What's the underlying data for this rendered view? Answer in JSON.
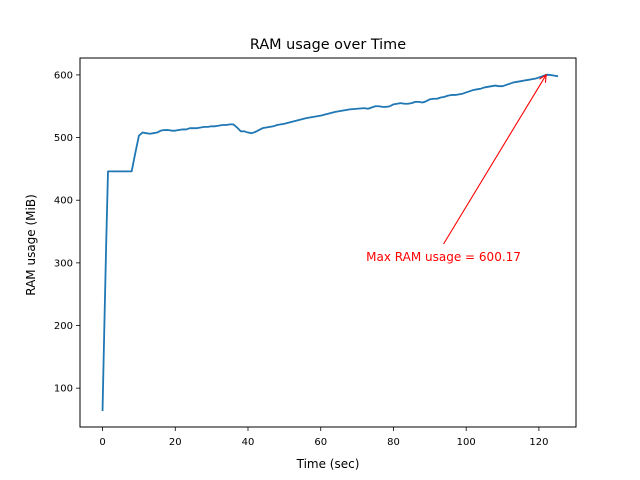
{
  "chart_data": {
    "type": "line",
    "title": "RAM usage over Time",
    "xlabel": "Time (sec)",
    "ylabel": "RAM usage (MiB)",
    "xlim": [
      -6.2,
      130.2
    ],
    "ylim": [
      38,
      627
    ],
    "xticks": [
      0,
      20,
      40,
      60,
      80,
      100,
      120
    ],
    "yticks": [
      100,
      200,
      300,
      400,
      500,
      600
    ],
    "grid": false,
    "series": [
      {
        "color": "#1f77b4",
        "x": [
          0,
          0.5,
          1,
          1.5,
          2,
          3,
          5,
          8,
          9,
          10,
          11,
          12,
          13,
          14,
          15,
          16,
          17,
          18,
          19,
          20,
          21,
          22,
          23,
          24,
          25,
          26,
          27,
          28,
          29,
          30,
          31,
          32,
          33,
          34,
          35,
          36,
          37,
          38,
          39,
          40,
          41,
          42,
          43,
          44,
          45,
          46,
          47,
          48,
          50,
          52,
          54,
          56,
          58,
          60,
          62,
          64,
          66,
          68,
          70,
          72,
          73,
          74,
          75,
          76,
          77,
          78,
          79,
          80,
          81,
          82,
          83,
          84,
          85,
          86,
          87,
          88,
          89,
          90,
          91,
          92,
          93,
          94,
          95,
          96,
          97,
          98,
          99,
          100,
          101,
          102,
          103,
          104,
          105,
          106,
          107,
          108,
          109,
          110,
          111,
          112,
          113,
          114,
          115,
          116,
          117,
          118,
          119,
          120,
          121,
          122,
          123,
          124,
          125
        ],
        "y": [
          65,
          200,
          330,
          446,
          446,
          446,
          446,
          446,
          475,
          503,
          508,
          507,
          506,
          507,
          508,
          511,
          512,
          512,
          511,
          511,
          512,
          513,
          513,
          515,
          515,
          515,
          516,
          517,
          517,
          518,
          518,
          519,
          520,
          520,
          521,
          521,
          516,
          510,
          510,
          508,
          507,
          509,
          512,
          515,
          516,
          517,
          518,
          520,
          522,
          525,
          528,
          531,
          533,
          535,
          538,
          541,
          543,
          545,
          546,
          547,
          546,
          548,
          550,
          550,
          549,
          549,
          550,
          553,
          554,
          555,
          554,
          554,
          555,
          557,
          557,
          556,
          558,
          561,
          562,
          562,
          564,
          565,
          567,
          568,
          568,
          569,
          570,
          572,
          574,
          576,
          577,
          578,
          580,
          581,
          582,
          583,
          582,
          582,
          584,
          586,
          588,
          589,
          590,
          591,
          592,
          593,
          594,
          596,
          598,
          600.17,
          600,
          599,
          598
        ]
      }
    ],
    "annotation": {
      "text": "Max RAM usage = 600.17",
      "color": "#ff0000",
      "point": [
        122,
        600.17
      ],
      "text_pos": [
        72.5,
        303
      ]
    }
  }
}
